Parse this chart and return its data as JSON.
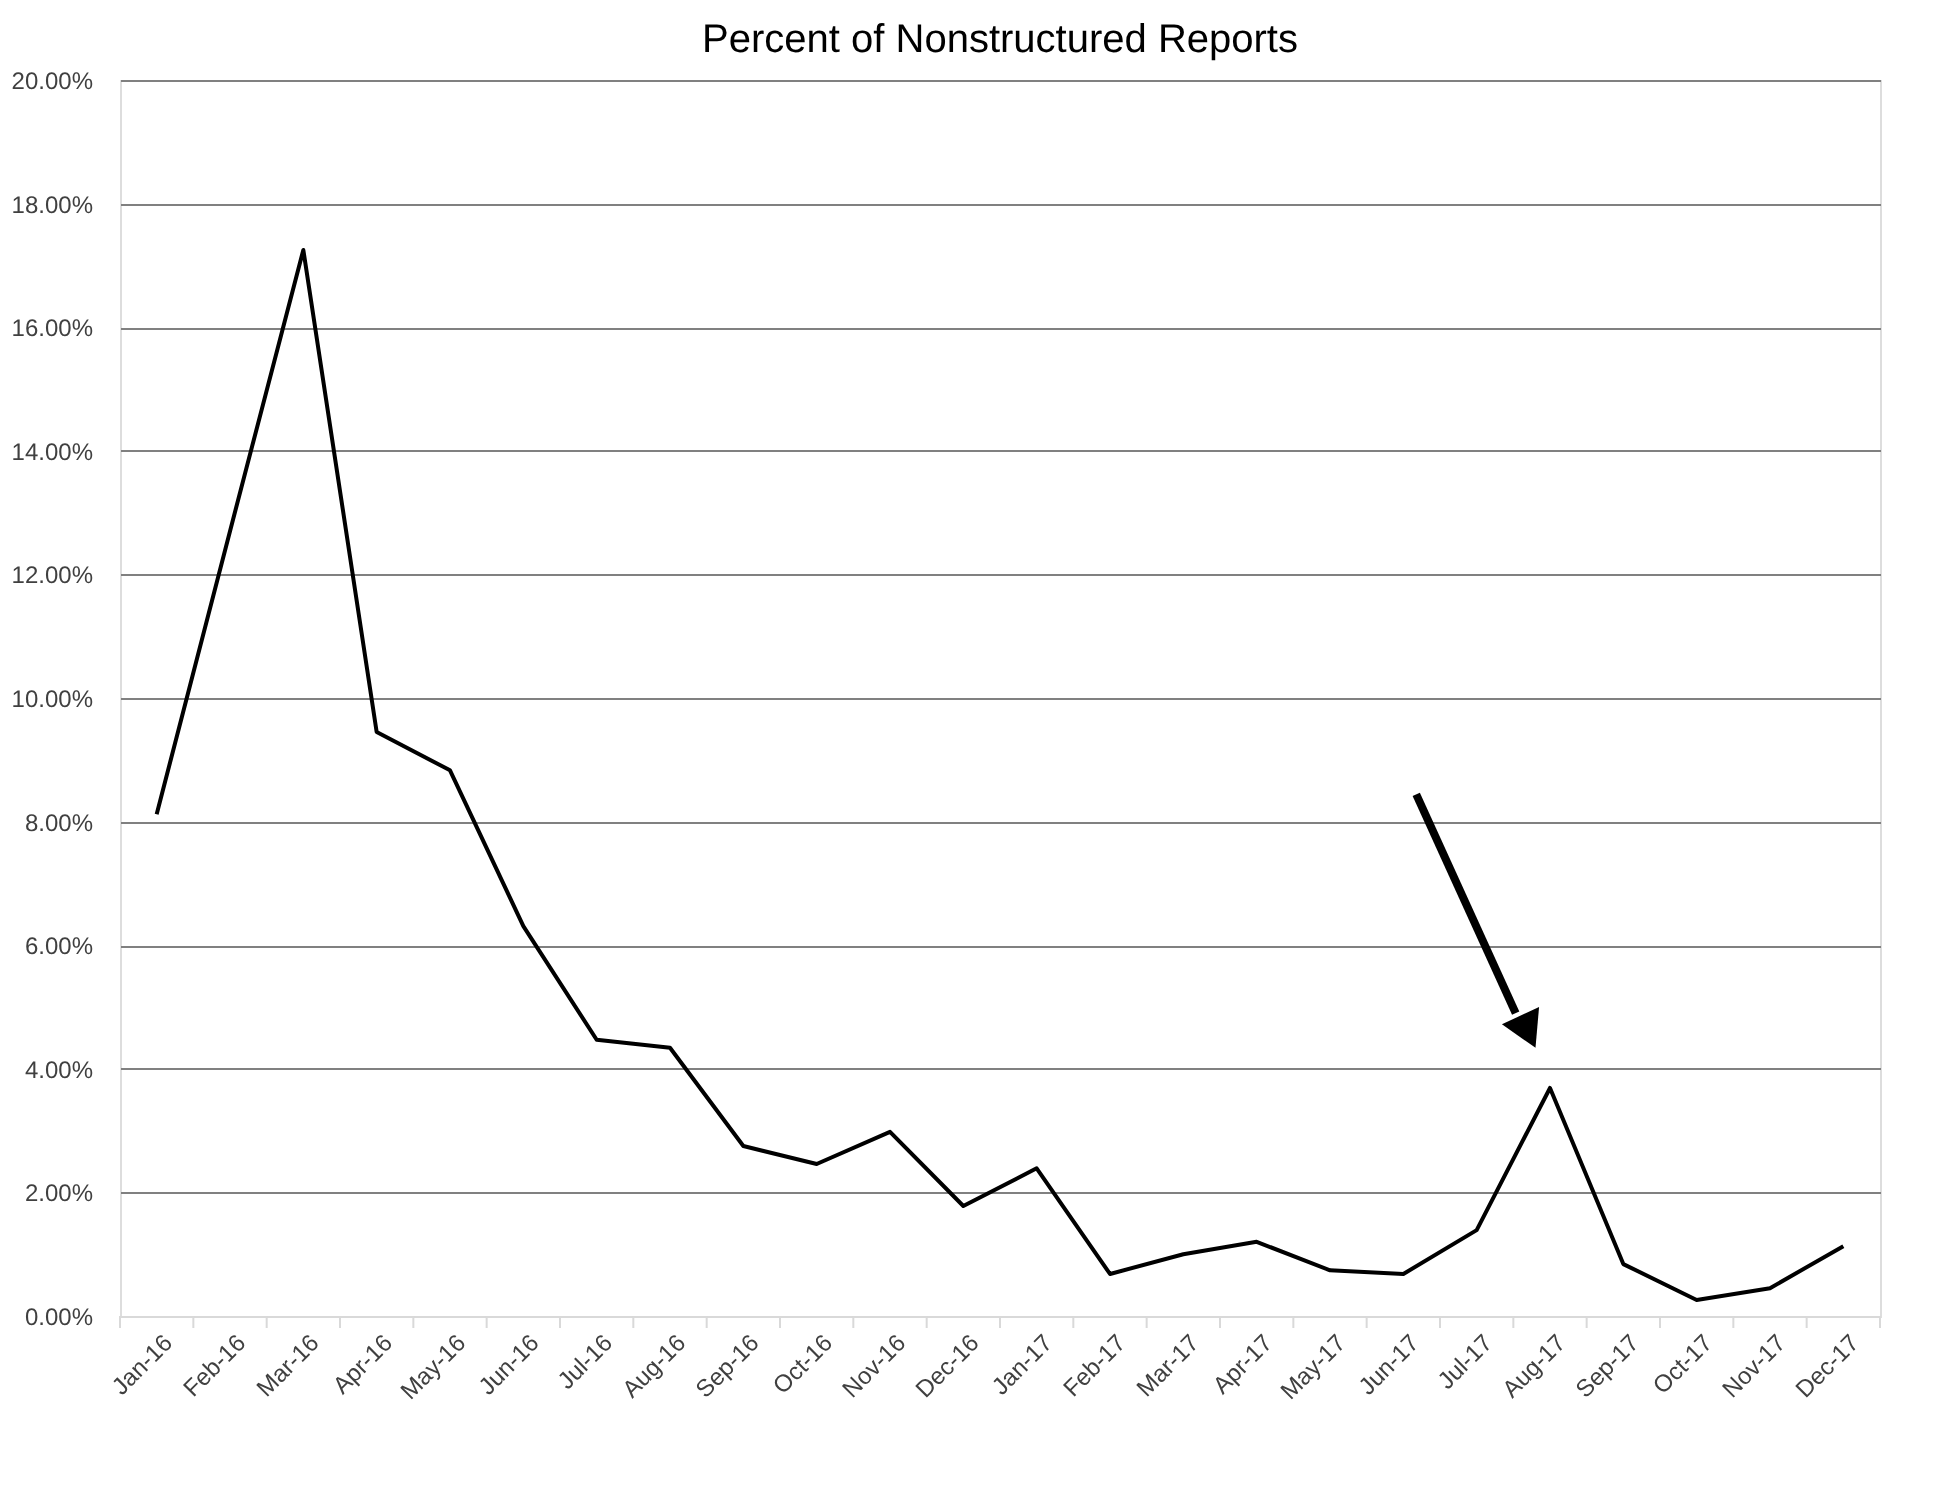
{
  "chart_data": {
    "type": "line",
    "title": "Percent of Nonstructured Reports",
    "categories": [
      "Jan-16",
      "Feb-16",
      "Mar-16",
      "Apr-16",
      "May-16",
      "Jun-16",
      "Jul-16",
      "Aug-16",
      "Sep-16",
      "Oct-16",
      "Nov-16",
      "Dec-16",
      "Jan-17",
      "Feb-17",
      "Mar-17",
      "Apr-17",
      "May-17",
      "Jun-17",
      "Jul-17",
      "Aug-17",
      "Sep-17",
      "Oct-17",
      "Nov-17",
      "Dec-17"
    ],
    "series": [
      {
        "color": "#000000",
        "values": [
          8.12,
          12.7,
          17.25,
          9.45,
          8.83,
          6.31,
          4.47,
          4.34,
          2.75,
          2.46,
          2.98,
          1.78,
          2.39,
          0.68,
          1.0,
          1.2,
          0.74,
          0.68,
          1.39,
          3.69,
          0.84,
          0.26,
          0.45,
          1.13
        ]
      }
    ],
    "ylim": [
      0,
      20
    ],
    "yticks": [
      {
        "value": 0,
        "label": "0.00%"
      },
      {
        "value": 2,
        "label": "2.00%"
      },
      {
        "value": 4,
        "label": "4.00%"
      },
      {
        "value": 6,
        "label": "6.00%"
      },
      {
        "value": 8,
        "label": "8.00%"
      },
      {
        "value": 10,
        "label": "10.00%"
      },
      {
        "value": 12,
        "label": "12.00%"
      },
      {
        "value": 14,
        "label": "14.00%"
      },
      {
        "value": 16,
        "label": "16.00%"
      },
      {
        "value": 18,
        "label": "18.00%"
      },
      {
        "value": 20,
        "label": "20.00%"
      }
    ],
    "grid": "y",
    "marker": "none",
    "line_style": "solid"
  }
}
